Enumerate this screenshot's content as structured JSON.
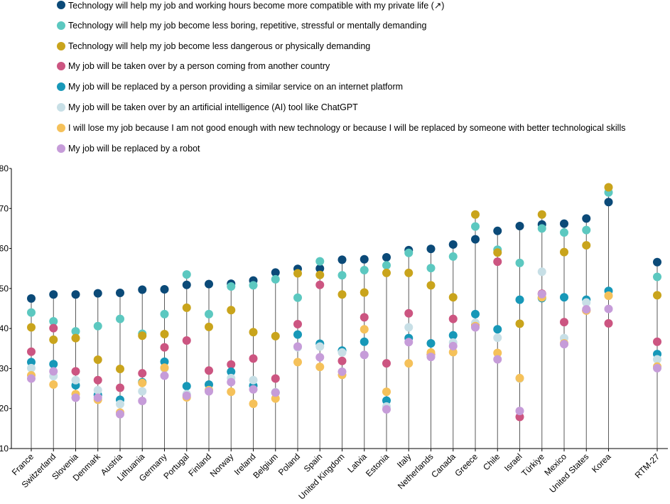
{
  "chart_data": {
    "type": "scatter",
    "title": "",
    "xlabel": "",
    "ylabel": "",
    "ylim": [
      10,
      80
    ],
    "yticks": [
      10,
      20,
      30,
      40,
      50,
      60,
      70,
      80
    ],
    "grid": false,
    "legend_position": "top",
    "categories": [
      "France",
      "Switzerland",
      "Slovenia",
      "Denmark",
      "Austria",
      "Lithuania",
      "Germany",
      "Portugal",
      "Finland",
      "Norway",
      "Ireland",
      "Belgium",
      "Poland",
      "Spain",
      "United Kingdom",
      "Latvia",
      "Estonia",
      "Italy",
      "Netherlands",
      "Canada",
      "Greece",
      "Chile",
      "Israel",
      "Türkiye",
      "Mexico",
      "United States",
      "Korea",
      "RTM-27"
    ],
    "series": [
      {
        "name": "Technology will help my job and working hours become more compatible with my private life (↗)",
        "color": "#0b4a78",
        "values": [
          47.5,
          48.5,
          48.5,
          48.8,
          48.9,
          49.7,
          49.8,
          50.9,
          51.1,
          51.2,
          52.0,
          54.0,
          54.9,
          55.0,
          57.2,
          57.3,
          57.8,
          59.6,
          59.9,
          61.0,
          62.3,
          64.4,
          65.6,
          66.0,
          66.2,
          67.5,
          71.6,
          56.6
        ]
      },
      {
        "name": "Technology will help my job become less boring, repetitive, stressful or mentally demanding",
        "color": "#5cc8c0",
        "values": [
          44.0,
          41.8,
          39.3,
          40.6,
          42.4,
          38.7,
          43.6,
          53.5,
          43.6,
          50.5,
          50.8,
          52.3,
          47.7,
          56.8,
          53.3,
          54.6,
          55.8,
          58.9,
          55.1,
          58.0,
          65.5,
          59.7,
          56.4,
          65.0,
          64.0,
          64.6,
          74.0,
          52.9
        ]
      },
      {
        "name": "Technology will help my job become less dangerous or physically demanding",
        "color": "#c9a41c",
        "values": [
          40.3,
          37.2,
          37.6,
          32.2,
          29.9,
          38.2,
          38.6,
          45.2,
          40.4,
          44.6,
          39.1,
          38.1,
          53.8,
          53.4,
          48.5,
          49.0,
          53.9,
          53.9,
          50.8,
          47.8,
          68.5,
          59.0,
          41.2,
          68.5,
          59.1,
          60.8,
          75.3,
          48.3
        ]
      },
      {
        "name": "My job will be taken over by a person coming from another country",
        "color": "#cc5581",
        "values": [
          34.2,
          40.1,
          29.3,
          27.1,
          25.2,
          28.8,
          35.3,
          37.0,
          29.5,
          31.0,
          32.5,
          27.5,
          41.1,
          50.9,
          31.9,
          42.8,
          31.3,
          43.8,
          33.5,
          42.4,
          40.9,
          56.7,
          17.9,
          48.7,
          41.6,
          44.5,
          41.3,
          36.7
        ]
      },
      {
        "name": "My job will be replaced by a person providing a similar service on an internet platform",
        "color": "#1798b8",
        "values": [
          31.6,
          31.1,
          25.8,
          23.4,
          22.2,
          26.6,
          31.7,
          25.6,
          26.0,
          29.2,
          25.7,
          24.0,
          38.5,
          36.2,
          34.5,
          36.7,
          22.0,
          37.6,
          36.3,
          38.3,
          43.6,
          39.8,
          47.2,
          47.6,
          47.8,
          47.2,
          49.4,
          33.6
        ]
      },
      {
        "name": "My job will be taken over by an artificial intelligence (AI) tool like ChatGPT",
        "color": "#c7dfe6",
        "values": [
          30.1,
          28.1,
          27.1,
          24.6,
          21.1,
          24.3,
          30.0,
          23.6,
          24.6,
          27.6,
          27.1,
          24.1,
          35.3,
          35.5,
          34.0,
          33.4,
          20.5,
          40.3,
          33.0,
          36.5,
          41.4,
          37.7,
          27.5,
          54.2,
          37.6,
          46.5,
          48.2,
          32.3
        ]
      },
      {
        "name": "I will lose my job because I am not good enough with new technology or because I will be replaced by someone with better technological skills",
        "color": "#f5c15a",
        "values": [
          28.3,
          26.0,
          23.6,
          22.2,
          19.0,
          26.4,
          30.2,
          22.8,
          24.6,
          24.2,
          21.2,
          22.5,
          31.6,
          30.4,
          28.4,
          39.8,
          24.2,
          31.3,
          34.0,
          34.1,
          40.6,
          33.9,
          27.6,
          47.8,
          36.3,
          44.5,
          48.2,
          30.5
        ]
      },
      {
        "name": "My job will be replaced by a robot",
        "color": "#c69cd9",
        "values": [
          27.5,
          29.3,
          22.7,
          22.7,
          18.6,
          21.9,
          28.2,
          23.2,
          24.3,
          26.6,
          24.8,
          24.0,
          35.5,
          32.8,
          29.2,
          33.4,
          19.8,
          36.6,
          32.9,
          35.6,
          40.3,
          32.3,
          19.4,
          48.6,
          36.1,
          44.8,
          44.9,
          30.1
        ]
      }
    ]
  }
}
